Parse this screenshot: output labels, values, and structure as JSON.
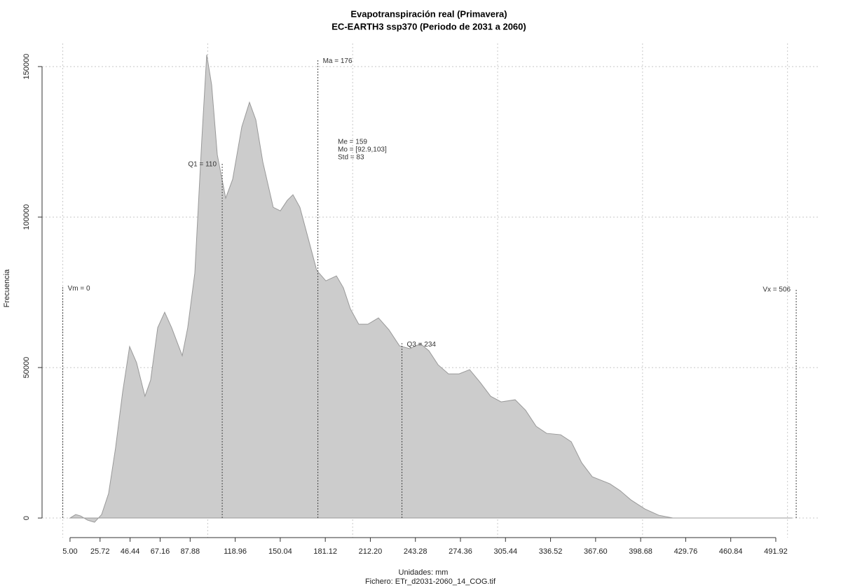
{
  "chart_data": {
    "type": "area",
    "title": "Evapotranspiración real (Primavera)",
    "subtitle": "EC-EARTH3 ssp370 (Periodo de 2031 a 2060)",
    "xlabel": "Unidades: mm",
    "ylabel": "Frecuencia",
    "caption": "Fichero: ETr_d2031-2060_14_COG.tif",
    "color": "#cccccc",
    "line_color": "#999999",
    "x": [
      5.0,
      8.9,
      12.3,
      17.1,
      21.9,
      26.8,
      31.6,
      36.4,
      41.3,
      46.1,
      50.9,
      56.7,
      60.6,
      65.5,
      70.3,
      75.1,
      82.4,
      86.2,
      91.1,
      95.9,
      99.3,
      102.7,
      106.6,
      112.4,
      117.2,
      123.5,
      128.8,
      133.2,
      138.0,
      145.2,
      150.1,
      154.9,
      158.8,
      163.6,
      169.4,
      175.2,
      181.5,
      188.8,
      193.6,
      198.4,
      204.2,
      210.5,
      217.8,
      225.0,
      232.3,
      239.5,
      246.8,
      252.6,
      258.9,
      266.1,
      273.4,
      280.7,
      287.9,
      295.2,
      302.4,
      312.1,
      319.3,
      326.6,
      333.8,
      343.5,
      350.8,
      358.0,
      365.3,
      377.4,
      384.6,
      391.9,
      401.6,
      411.2,
      420.9,
      503.1
    ],
    "values": [
      0,
      1163,
      698,
      -698,
      -1395,
      1163,
      8140,
      23256,
      41860,
      56977,
      51628,
      40465,
      45814,
      63256,
      68372,
      63256,
      53954,
      63256,
      81395,
      125581,
      153953,
      143953,
      120698,
      106279,
      112558,
      129977,
      138116,
      132302,
      118349,
      103233,
      102070,
      105558,
      107419,
      103233,
      92767,
      82302,
      78814,
      80442,
      76488,
      69512,
      64395,
      64395,
      66488,
      62558,
      57209,
      56279,
      57907,
      55581,
      50930,
      47907,
      47907,
      49302,
      45116,
      40465,
      38605,
      39302,
      35814,
      30465,
      28140,
      27674,
      25349,
      18372,
      13721,
      11395,
      9070,
      6046,
      3023,
      930,
      0,
      0
    ],
    "xlim": [
      -14.3,
      522.4
    ],
    "ylim": [
      -6500,
      157700
    ],
    "xticks": [
      {
        "value": 5,
        "label": "5.00"
      },
      25.72,
      46.44,
      67.16,
      87.88,
      118.96,
      150.04,
      181.12,
      {
        "value": 212.2,
        "label": "212.20"
      },
      243.28,
      274.36,
      305.44,
      336.52,
      {
        "value": 367.6,
        "label": "367.60"
      },
      398.68,
      429.76,
      460.84,
      491.92
    ],
    "yticks": [
      0,
      50000,
      100000,
      150000
    ],
    "xgrid": [
      0,
      100,
      200,
      300,
      400,
      500
    ],
    "grid": true,
    "annotations": [
      {
        "label": "Vm = 0",
        "x": 0,
        "y": 76700,
        "side": "right"
      },
      {
        "label": "Q1 = 110",
        "x": 110,
        "y": 118000,
        "side": "left"
      },
      {
        "label": "Ma = 176",
        "x": 176,
        "y": 152300,
        "side": "right"
      },
      {
        "label": "Q3 = 234",
        "x": 234,
        "y": 58100,
        "side": "right"
      },
      {
        "label": "Vx = 506",
        "x": 506,
        "y": 76300,
        "side": "left"
      }
    ],
    "stats": [
      "Me = 159",
      "Mo = [92.9,103]",
      "Std = 83"
    ]
  }
}
